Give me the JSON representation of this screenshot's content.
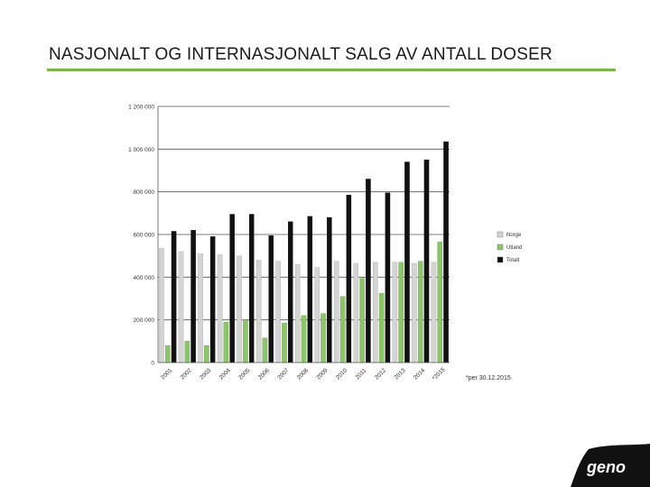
{
  "slide": {
    "title": "NASJONALT OG INTERNASJONALT SALG AV ANTALL DOSER",
    "footnote": "*per 30.12.2015",
    "logo_text": "geno"
  },
  "colors": {
    "accent": "#7ab648",
    "norway": "#d4d4d4",
    "abroad": "#8dc56a",
    "total": "#111111",
    "logo": "#111111"
  },
  "chart_data": {
    "type": "bar",
    "title": "",
    "xlabel": "",
    "ylabel": "",
    "categories": [
      "2001",
      "2002",
      "2003",
      "2004",
      "2005",
      "2006",
      "2007",
      "2008",
      "2009",
      "2010",
      "2011",
      "2012",
      "2013",
      "2014",
      "*2015"
    ],
    "series": [
      {
        "name": "Norge",
        "values": [
          535000,
          520000,
          510000,
          505000,
          500000,
          480000,
          475000,
          460000,
          445000,
          475000,
          465000,
          470000,
          470000,
          465000,
          470000
        ]
      },
      {
        "name": "Utland",
        "values": [
          80000,
          100000,
          80000,
          190000,
          200000,
          115000,
          185000,
          220000,
          230000,
          310000,
          395000,
          325000,
          470000,
          475000,
          565000
        ]
      },
      {
        "name": "Totalt",
        "values": [
          615000,
          620000,
          590000,
          695000,
          695000,
          595000,
          660000,
          685000,
          680000,
          785000,
          860000,
          795000,
          940000,
          950000,
          1035000
        ]
      }
    ],
    "yticks": [
      0,
      200000,
      400000,
      600000,
      800000,
      1000000,
      1200000
    ],
    "ytick_labels": [
      "0",
      "200 000",
      "400 000",
      "600 000",
      "800 000",
      "1 000 000",
      "1 200 000"
    ],
    "ylim": [
      0,
      1200000
    ],
    "grid": true,
    "legend": "right"
  }
}
